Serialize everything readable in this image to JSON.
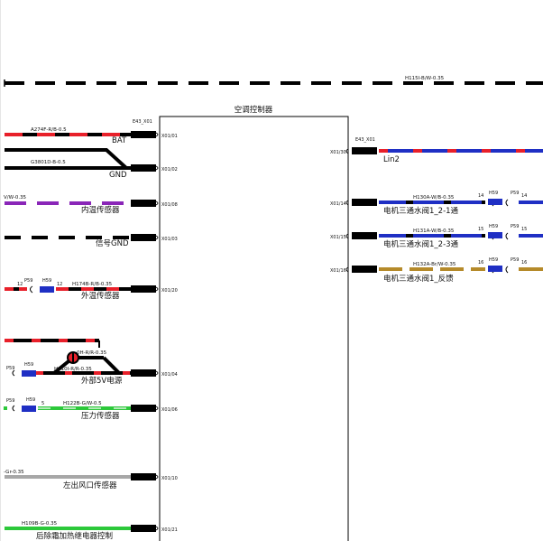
{
  "diagram": {
    "module_title": "空调控制器",
    "top_wire": "H115I-B/W-0.35",
    "left_connector": "E43_X01",
    "right_connector": "E43_X01",
    "left_pins": [
      "X01/01",
      "X01/02",
      "X01/08",
      "X01/03",
      "X01/20",
      "X01/04",
      "X01/06",
      "X01/10",
      "X01/21"
    ],
    "right_pins": [
      "X01/30",
      "X01/14",
      "X01/15",
      "X01/16"
    ],
    "left_labels": [
      "BAT",
      "GND",
      "内温传感器",
      "信号GND",
      "外温传感器",
      "外部5V电源",
      "压力传感器",
      "左出风口传感器",
      "后除霜加热继电器控制"
    ],
    "left_wires": [
      "A274F-R/B-0.5",
      "G3801D-B-0.5",
      "V/W-0.35",
      "H174B-R/B-0.35",
      "0H-R/R-0.35",
      "H110I-R/R-0.35",
      "H122B-G/W-0.5",
      "-Gr-0.35",
      "H109B-G-0.35"
    ],
    "left_nodes": {
      "p59": "P59",
      "h59": "H59",
      "n12": "12",
      "n5": "5"
    },
    "right_labels": [
      "Lin2",
      "电机三通水阀1_2-1通",
      "电机三通水阀1_2-3通",
      "电机三通水阀1_反馈"
    ],
    "right_wires": [
      "H130A-W/B-0.35",
      "H131A-W/B-0.35",
      "H132A-Br/W-0.35"
    ],
    "right_nodes": {
      "p59": "P59",
      "h59": "H59",
      "n14": "14",
      "n15": "15",
      "n16": "16"
    },
    "colors": {
      "black": "#000000",
      "red": "#e8202a",
      "blue": "#1f2fc4",
      "purple": "#8a26b8",
      "green": "#2cc83a",
      "grey": "#a7a7a7",
      "brown": "#b58a2a"
    }
  }
}
